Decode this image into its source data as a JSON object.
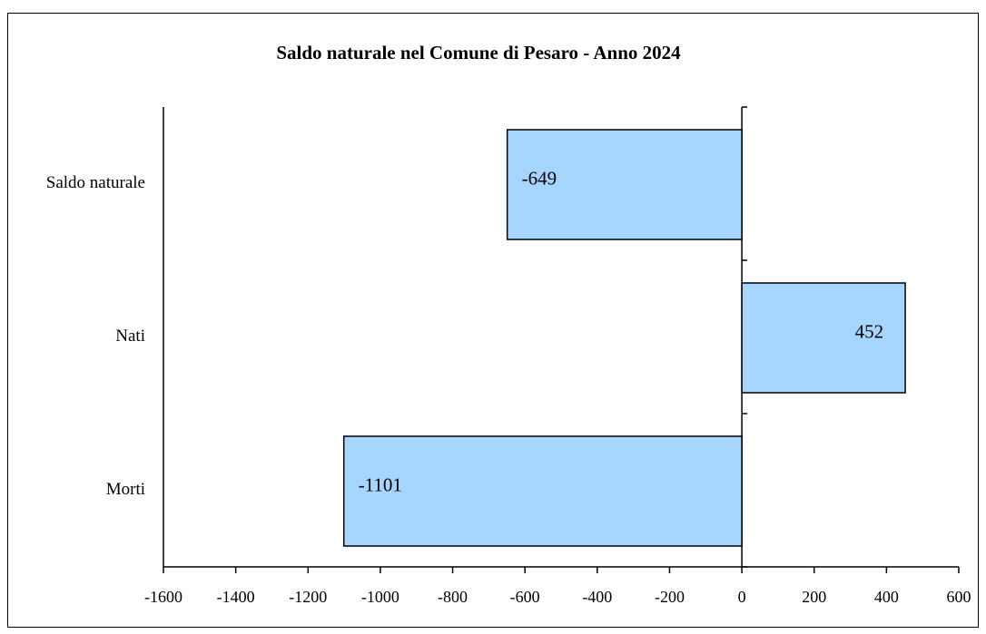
{
  "chart_data": {
    "type": "hbar",
    "title": "Saldo naturale nel Comune di Pesaro - Anno 2024",
    "categories": [
      "Saldo naturale",
      "Nati",
      "Morti"
    ],
    "values": [
      -649,
      452,
      -1101
    ],
    "color": "#a6d5ff",
    "xlim": [
      -1600,
      600
    ],
    "xticks": [
      -1600,
      -1400,
      -1200,
      -1000,
      -800,
      -600,
      -400,
      -200,
      0,
      200,
      400,
      600
    ]
  }
}
